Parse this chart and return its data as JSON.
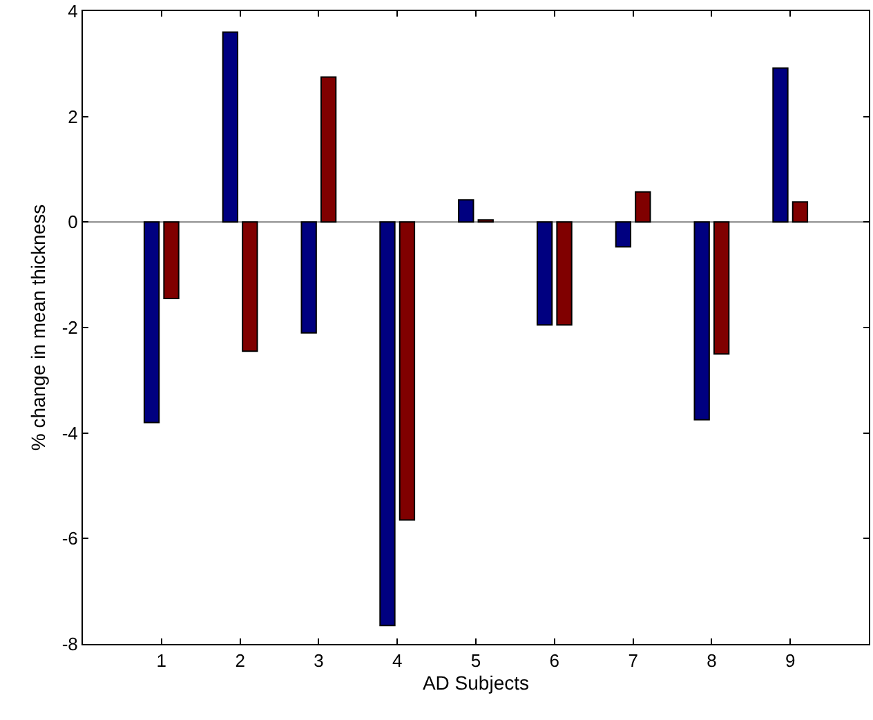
{
  "chart_data": {
    "type": "bar",
    "xlabel": "AD Subjects",
    "ylabel": "% change in mean thickness",
    "x": [
      1,
      2,
      3,
      4,
      5,
      6,
      7,
      8,
      9
    ],
    "series": [
      {
        "color": "#000080",
        "values": [
          -3.8,
          3.6,
          -2.1,
          -7.65,
          0.42,
          -1.95,
          -0.47,
          -3.75,
          2.92
        ]
      },
      {
        "color": "#800000",
        "values": [
          -1.45,
          -2.45,
          2.75,
          -5.65,
          0.04,
          -1.95,
          0.57,
          -2.5,
          0.38
        ]
      }
    ],
    "xlim": [
      0,
      10
    ],
    "xticks": [
      1,
      2,
      3,
      4,
      5,
      6,
      7,
      8,
      9
    ],
    "ylim": [
      -8,
      4
    ],
    "yticks": [
      -8,
      -6,
      -4,
      -2,
      0,
      2,
      4
    ],
    "ref_lines": [
      {
        "axis": "y",
        "value": 0,
        "color": "#808080"
      }
    ]
  }
}
